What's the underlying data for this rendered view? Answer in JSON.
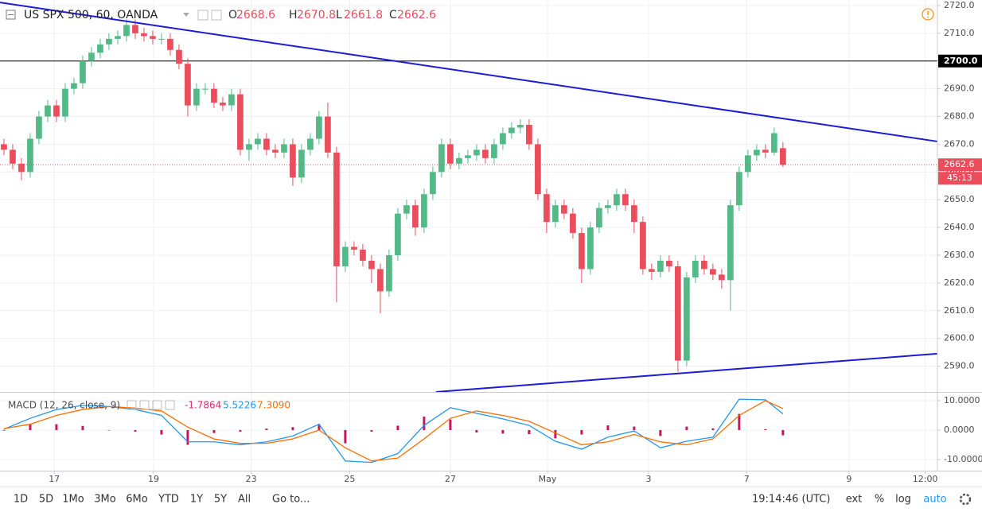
{
  "chart_data": [
    {
      "type": "candlestick",
      "title": "US SPX 500, 60, OANDA",
      "legend": [
        {
          "label": "O",
          "value": 2668.6
        },
        {
          "label": "H",
          "value": 2670.8
        },
        {
          "label": "L",
          "value": 2661.8
        },
        {
          "label": "C",
          "value": 2662.6
        }
      ],
      "x": [
        0,
        2,
        4,
        6,
        8,
        10,
        12,
        14,
        16,
        18,
        20,
        22,
        24,
        26,
        28,
        30,
        32,
        34,
        36,
        38,
        40,
        42,
        44,
        46,
        48,
        50,
        52,
        54,
        56,
        58,
        60,
        62,
        64,
        66,
        68,
        70,
        72,
        74,
        76,
        78,
        80,
        82,
        84,
        86,
        88,
        90,
        92,
        94,
        96,
        98,
        100,
        102,
        104,
        106,
        108,
        110,
        112,
        114,
        116,
        118,
        120,
        122,
        124,
        126,
        128,
        130,
        132,
        134,
        136,
        138,
        140,
        142,
        144,
        146,
        148,
        150,
        152,
        154,
        156,
        158,
        160,
        162,
        164,
        166,
        168,
        170,
        172,
        174,
        176,
        178
      ],
      "open": [
        2670,
        2668,
        2663,
        2660,
        2672,
        2680,
        2684,
        2680,
        2690,
        2692,
        2700,
        2703,
        2706,
        2708,
        2709,
        2713,
        2710,
        2709,
        2708,
        2708,
        2704,
        2699,
        2684,
        2690,
        2690,
        2685,
        2684,
        2688,
        2668,
        2670,
        2672,
        2668,
        2667,
        2670,
        2658,
        2668,
        2672,
        2680,
        2667,
        2626,
        2633,
        2632,
        2628,
        2625,
        2617,
        2630,
        2645,
        2648,
        2640,
        2652,
        2660,
        2670,
        2663,
        2665,
        2666,
        2668,
        2665,
        2670,
        2674,
        2676,
        2677,
        2670,
        2652,
        2642,
        2648,
        2645,
        2638,
        2625,
        2640,
        2647,
        2648,
        2652,
        2648,
        2642,
        2625,
        2624,
        2628,
        2626,
        2592,
        2622,
        2628,
        2625,
        2623,
        2621,
        2648,
        2660,
        2666,
        2668,
        2667,
        2668.6
      ],
      "high": [
        2672,
        2670,
        2665,
        2674,
        2682,
        2686,
        2686,
        2692,
        2694,
        2702,
        2705,
        2708,
        2710,
        2711,
        2715,
        2715,
        2712,
        2711,
        2710,
        2710,
        2706,
        2701,
        2692,
        2692,
        2692,
        2687,
        2690,
        2690,
        2672,
        2674,
        2674,
        2670,
        2672,
        2672,
        2670,
        2674,
        2682,
        2685,
        2669,
        2635,
        2635,
        2634,
        2630,
        2627,
        2632,
        2647,
        2650,
        2650,
        2654,
        2662,
        2672,
        2672,
        2667,
        2668,
        2670,
        2670,
        2672,
        2676,
        2678,
        2679,
        2679,
        2672,
        2654,
        2650,
        2650,
        2647,
        2640,
        2642,
        2649,
        2650,
        2654,
        2654,
        2650,
        2644,
        2627,
        2630,
        2630,
        2628,
        2624,
        2630,
        2630,
        2627,
        2625,
        2650,
        2662,
        2668,
        2670,
        2670,
        2676,
        2670.8
      ],
      "low": [
        2666,
        2661,
        2657,
        2658,
        2670,
        2678,
        2678,
        2678,
        2688,
        2690,
        2698,
        2701,
        2704,
        2706,
        2707,
        2708,
        2707,
        2706,
        2706,
        2702,
        2697,
        2680,
        2682,
        2688,
        2683,
        2682,
        2682,
        2666,
        2664,
        2668,
        2666,
        2665,
        2665,
        2655,
        2656,
        2666,
        2670,
        2665,
        2613,
        2624,
        2630,
        2626,
        2620,
        2609,
        2615,
        2628,
        2643,
        2637,
        2638,
        2650,
        2658,
        2661,
        2661,
        2663,
        2664,
        2663,
        2663,
        2668,
        2672,
        2674,
        2668,
        2650,
        2638,
        2640,
        2643,
        2636,
        2620,
        2623,
        2638,
        2645,
        2646,
        2646,
        2638,
        2623,
        2621,
        2622,
        2624,
        2588,
        2590,
        2620,
        2623,
        2621,
        2618,
        2610,
        2646,
        2658,
        2664,
        2665,
        2666,
        2661.8
      ],
      "close": [
        2668,
        2663,
        2660,
        2672,
        2680,
        2684,
        2680,
        2690,
        2692,
        2700,
        2703,
        2706,
        2708,
        2709,
        2713,
        2710,
        2709,
        2708,
        2708,
        2704,
        2699,
        2684,
        2690,
        2690,
        2685,
        2684,
        2688,
        2668,
        2670,
        2672,
        2668,
        2667,
        2670,
        2658,
        2668,
        2672,
        2680,
        2667,
        2626,
        2633,
        2632,
        2628,
        2625,
        2617,
        2630,
        2645,
        2648,
        2640,
        2652,
        2660,
        2670,
        2663,
        2665,
        2666,
        2668,
        2665,
        2670,
        2674,
        2676,
        2677,
        2670,
        2652,
        2642,
        2648,
        2645,
        2638,
        2625,
        2640,
        2647,
        2648,
        2652,
        2648,
        2642,
        2625,
        2624,
        2628,
        2626,
        2592,
        2622,
        2628,
        2625,
        2623,
        2621,
        2648,
        2660,
        2666,
        2668,
        2667,
        2674,
        2662.6
      ],
      "up_color": "#53b987",
      "down_color": "#eb4d5c",
      "xlim": [
        -0.9,
        213.3
      ],
      "xticks": [
        {
          "value": 11.5,
          "label": "17"
        },
        {
          "value": 34.2,
          "label": "19"
        },
        {
          "value": 56.5,
          "label": "23"
        },
        {
          "value": 79,
          "label": "25"
        },
        {
          "value": 102,
          "label": "27"
        },
        {
          "value": 124.2,
          "label": "May"
        },
        {
          "value": 147.3,
          "label": "3"
        },
        {
          "value": 169.7,
          "label": "7"
        },
        {
          "value": 193.1,
          "label": "9"
        },
        {
          "value": 210.5,
          "label": "12:00"
        }
      ],
      "ylim": [
        2580.7,
        2722
      ],
      "yticks": [
        {
          "value": 2590,
          "label": "2590.0"
        },
        {
          "value": 2600,
          "label": "2600.0"
        },
        {
          "value": 2610,
          "label": "2610.0"
        },
        {
          "value": 2620,
          "label": "2620.0"
        },
        {
          "value": 2630,
          "label": "2630.0"
        },
        {
          "value": 2640,
          "label": "2640.0"
        },
        {
          "value": 2650,
          "label": "2650.0"
        },
        {
          "value": 2660,
          "label": "2660.0"
        },
        {
          "value": 2670,
          "label": "2670.0"
        },
        {
          "value": 2680,
          "label": "2680.0"
        },
        {
          "value": 2690,
          "label": "2690.0"
        },
        {
          "value": 2700,
          "label": "2700.0"
        },
        {
          "value": 2710,
          "label": "2710.0"
        },
        {
          "value": 2720,
          "label": "2720.0"
        }
      ],
      "grid": true,
      "hlines": [
        {
          "value": 2700,
          "label": "2700.0",
          "color": "#000000"
        }
      ],
      "price_line": {
        "value": 2662.6,
        "countdown": "45:13",
        "color": "#eb4d5c"
      },
      "trendlines": [
        {
          "x": [
            -0.9,
            213.3
          ],
          "y": [
            2721.1,
            2671
          ],
          "color": "#1b1bd8"
        },
        {
          "x": [
            98.7,
            213.3
          ],
          "y": [
            2580.7,
            2594.5
          ],
          "color": "#1b1bd8"
        }
      ]
    },
    {
      "type": "macd",
      "title": "MACD (12, 26, close, 9)",
      "legend_values": [
        {
          "value": -1.7864,
          "color": "#e0266c"
        },
        {
          "value": 5.5226,
          "color": "#2196f3"
        },
        {
          "value": 7.309,
          "label": "7.3090",
          "color": "#ff6d00"
        }
      ],
      "x": [
        0,
        6,
        12,
        18,
        24,
        30,
        36,
        42,
        48,
        54,
        60,
        66,
        72,
        78,
        84,
        90,
        96,
        102,
        108,
        114,
        120,
        126,
        132,
        138,
        144,
        150,
        156,
        162,
        168,
        174,
        178
      ],
      "xlim": [
        -0.9,
        213.3
      ],
      "series": [
        {
          "color": "#2196f3",
          "values": [
            0.3,
            4,
            7,
            8.4,
            8,
            7,
            5,
            -4,
            -4,
            -5,
            -4,
            -2,
            2,
            -10.5,
            -11,
            -8,
            1.6,
            7.6,
            5.7,
            3.8,
            1.6,
            -3.8,
            -6.5,
            -2.4,
            -0.3,
            -6,
            -3.8,
            -2.4,
            10.5,
            10.3,
            5.5226
          ]
        },
        {
          "color": "#ff6d00",
          "values": [
            0.5,
            2,
            5,
            7,
            8,
            7.5,
            6.5,
            1,
            -3,
            -4.5,
            -4.5,
            -3,
            0,
            -6,
            -10.5,
            -9.5,
            -3,
            4,
            6.5,
            5,
            3,
            -1,
            -5,
            -4,
            -1.5,
            -4,
            -5,
            -3,
            5,
            10,
            7.309
          ]
        }
      ],
      "histogram": {
        "color": "#c2185b",
        "values": [
          -0.2,
          2,
          2,
          1.4,
          0,
          -0.5,
          -1.5,
          -5,
          -1,
          -0.5,
          0.5,
          1,
          2,
          -4.5,
          -0.5,
          1.5,
          4.6,
          3.6,
          -0.8,
          -1.2,
          -1.4,
          -2.8,
          -1.5,
          1.6,
          1.2,
          -2,
          1.2,
          0.6,
          5.5,
          0.3,
          -1.7864
        ]
      },
      "ylim": [
        -13.8,
        12.7
      ],
      "yticks": [
        {
          "value": -10,
          "label": "-10.0000"
        },
        {
          "value": 0,
          "label": "0.0000"
        },
        {
          "value": 10,
          "label": "10.0000"
        }
      ],
      "grid": true
    }
  ],
  "toolbar": {
    "ranges": [
      "1D",
      "5D",
      "1Mo",
      "3Mo",
      "6Mo",
      "YTD",
      "1Y",
      "5Y",
      "All"
    ],
    "goto": "Go to...",
    "time": "19:14:46 (UTC)",
    "options": [
      "ext",
      "%",
      "log",
      "auto"
    ]
  }
}
